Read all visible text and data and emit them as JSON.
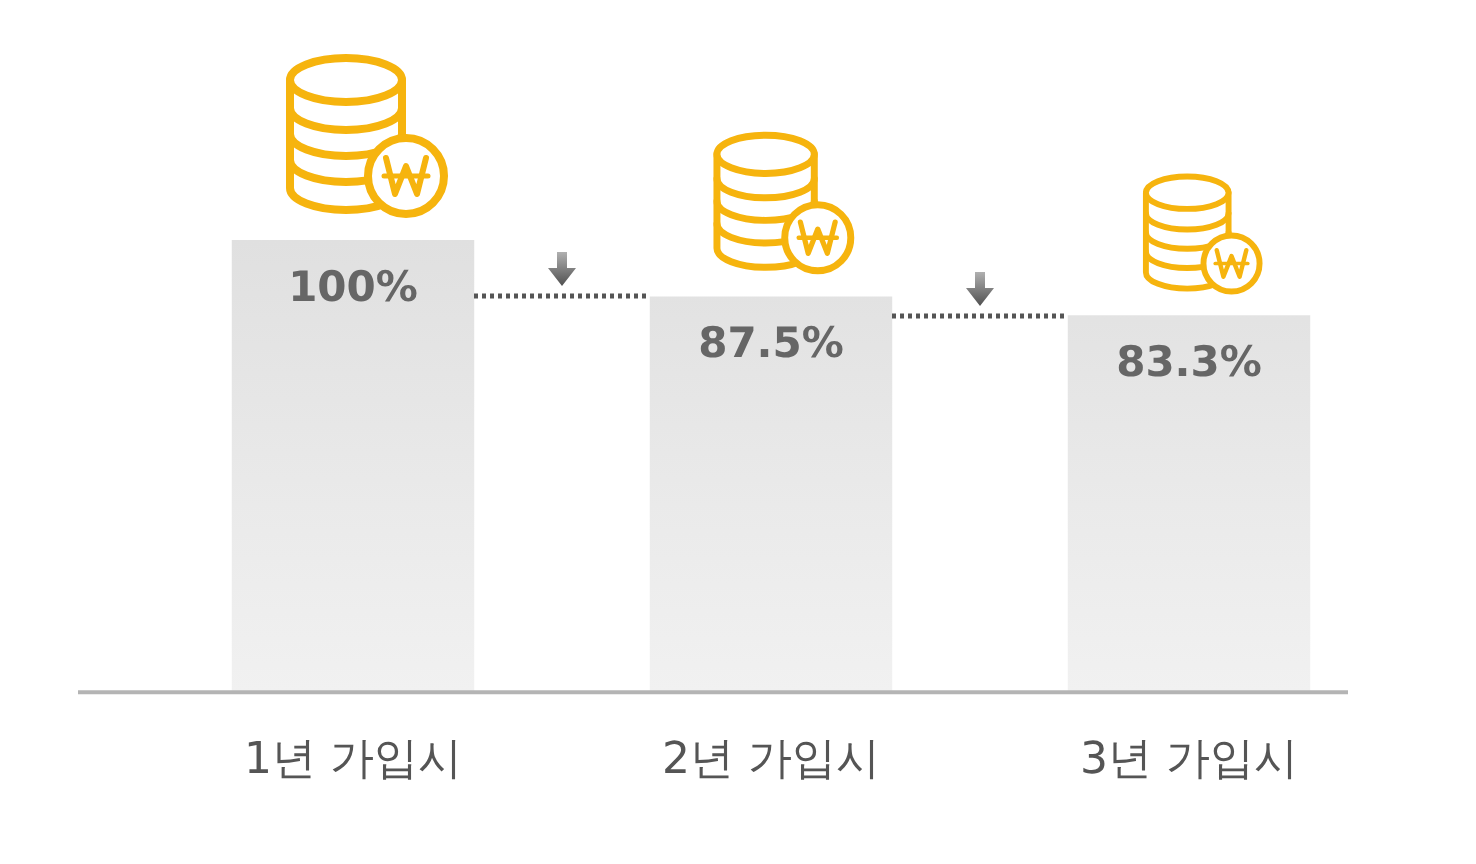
{
  "chart_data": {
    "type": "bar",
    "categories": [
      "1년 가입시",
      "2년 가입시",
      "3년 가입시"
    ],
    "values": [
      100,
      87.5,
      83.3
    ],
    "value_labels": [
      "100%",
      "87.5%",
      "83.3%"
    ],
    "color": "#e0e0e0",
    "tick_labels": "x"
  }
}
